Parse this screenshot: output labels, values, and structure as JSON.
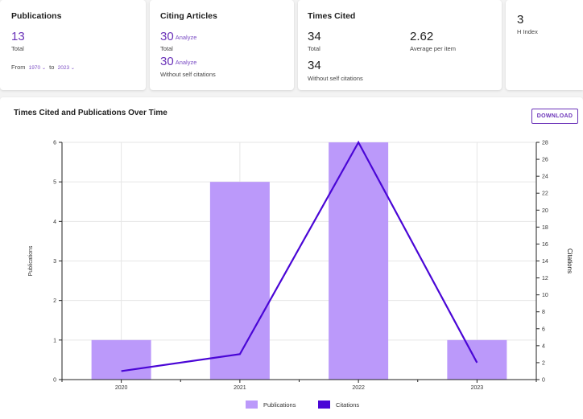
{
  "publications": {
    "title": "Publications",
    "total_value": "13",
    "total_label": "Total",
    "from_label": "From",
    "from_value": "1970",
    "to_label": "to",
    "to_value": "2023"
  },
  "citing_articles": {
    "title": "Citing Articles",
    "total_value": "30",
    "total_analyze": "Analyze",
    "total_label": "Total",
    "noself_value": "30",
    "noself_analyze": "Analyze",
    "noself_label": "Without self citations"
  },
  "times_cited": {
    "title": "Times Cited",
    "total_value": "34",
    "total_label": "Total",
    "avg_value": "2.62",
    "avg_label": "Average per item",
    "noself_value": "34",
    "noself_label": "Without self citations"
  },
  "h_index": {
    "value": "3",
    "label": "H Index"
  },
  "chart_section": {
    "title": "Times Cited and Publications Over Time",
    "download_label": "DOWNLOAD"
  },
  "colors": {
    "bar": "#bb99fa",
    "line": "#4a06d6",
    "accent": "#6a32b8"
  },
  "chart_data": {
    "type": "bar",
    "categories": [
      "2020",
      "2021",
      "2022",
      "2023"
    ],
    "series": [
      {
        "name": "Publications",
        "type": "bar",
        "axis": "left",
        "values": [
          1,
          5,
          6,
          1
        ]
      },
      {
        "name": "Citations",
        "type": "line",
        "axis": "right",
        "values": [
          1,
          3,
          28,
          2
        ]
      }
    ],
    "ylabel": "Publications",
    "y2label": "Citations",
    "ylim": [
      0,
      6
    ],
    "y2lim": [
      0,
      28
    ],
    "yticks": [
      "0",
      "1",
      "2",
      "3",
      "4",
      "5",
      "6"
    ],
    "y2ticks": [
      "0",
      "2",
      "4",
      "6",
      "8",
      "10",
      "12",
      "14",
      "16",
      "18",
      "20",
      "22",
      "24",
      "26",
      "28"
    ],
    "grid": true,
    "legend": "bottom-center"
  }
}
